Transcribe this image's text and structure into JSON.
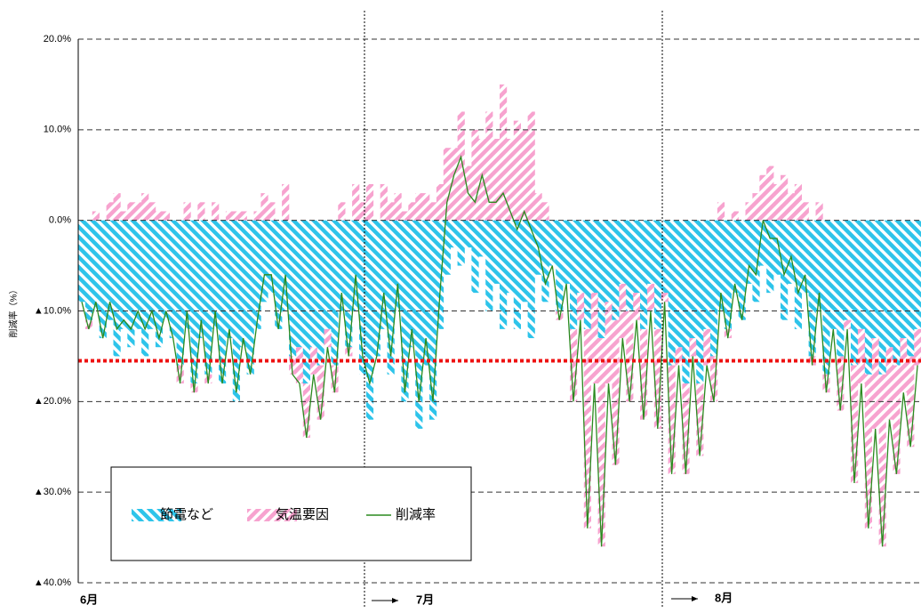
{
  "chart_data": {
    "type": "hatched-bar-line",
    "y_axis_label": "削減率（%）",
    "months": [
      "6月",
      "7月",
      "8月"
    ],
    "ylim": [
      -40,
      20
    ],
    "yticks": [
      {
        "value": -40,
        "label": "▲40.0%"
      },
      {
        "value": -30,
        "label": "▲30.0%"
      },
      {
        "value": -20,
        "label": "▲20.0%"
      },
      {
        "value": -10,
        "label": "▲10.0%"
      },
      {
        "value": 0,
        "label": "0.0%"
      },
      {
        "value": 10,
        "label": "10.0%"
      },
      {
        "value": 20,
        "label": "20.0%"
      }
    ],
    "grid": true,
    "reference_line": {
      "value": -15.5,
      "color": "#ee1111"
    },
    "categories": [
      null,
      null,
      null,
      null,
      null,
      null,
      null,
      null,
      null,
      null,
      null,
      null,
      null,
      null,
      null,
      null,
      null,
      null,
      null,
      null,
      null,
      null,
      null,
      null,
      null,
      null,
      null,
      null,
      null,
      null,
      null,
      null,
      null,
      null,
      null,
      null,
      null,
      null,
      null,
      null,
      null,
      null,
      null,
      null,
      null,
      null,
      null,
      null,
      null,
      null,
      null,
      null,
      null,
      null,
      null,
      null,
      null,
      null,
      null,
      null,
      null,
      null,
      null,
      null,
      null,
      null,
      null,
      null,
      null,
      null,
      null,
      null,
      null,
      null,
      null,
      null,
      null,
      null,
      null,
      null,
      null,
      null,
      null,
      null,
      null,
      null,
      null,
      null,
      null,
      null,
      null,
      null,
      null,
      null,
      null,
      null,
      null,
      null,
      null,
      null,
      null,
      null,
      null,
      null,
      null,
      null,
      null,
      null,
      null,
      null,
      null,
      null,
      null,
      null,
      null,
      null,
      null,
      null,
      null,
      null
    ],
    "series": [
      {
        "name": "節電など",
        "color": "#2ec4ea",
        "values": [
          -9,
          -11,
          -10,
          -13,
          -11,
          -15,
          -12,
          -14,
          -12,
          -15,
          -12,
          -14,
          -11,
          -13,
          -16,
          -12,
          -18,
          -13,
          -17,
          -12,
          -18,
          -13,
          -20,
          -14,
          -17,
          -12,
          -9,
          -8,
          -12,
          -10,
          -15,
          -14,
          -18,
          -14,
          -16,
          -12,
          -16,
          -10,
          -14,
          -10,
          -17,
          -22,
          -15,
          -12,
          -17,
          -10,
          -20,
          -14,
          -23,
          -16,
          -22,
          -12,
          -6,
          -3,
          -5,
          -3,
          -8,
          -4,
          -10,
          -7,
          -12,
          -8,
          -12,
          -9,
          -13,
          -6,
          -9,
          -5,
          -10,
          -7,
          -12,
          -8,
          -12,
          -8,
          -13,
          -9,
          -11,
          -7,
          -10,
          -8,
          -12,
          -7,
          -12,
          -8,
          -16,
          -14,
          -18,
          -13,
          -18,
          -12,
          -15,
          -10,
          -12,
          -8,
          -11,
          -7,
          -9,
          -5,
          -8,
          -6,
          -11,
          -7,
          -12,
          -8,
          -15,
          -10,
          -17,
          -12,
          -15,
          -11,
          -16,
          -12,
          -17,
          -13,
          -17,
          -14,
          -16,
          -13,
          -15,
          -12
        ]
      },
      {
        "name": "気温要因",
        "color": "#f7a3cf",
        "values": [
          0,
          -1,
          1,
          0,
          2,
          3,
          1,
          2,
          2,
          3,
          2,
          1,
          1,
          0,
          -2,
          2,
          -1,
          2,
          -1,
          2,
          0,
          1,
          1,
          1,
          0,
          1,
          3,
          2,
          0,
          4,
          -2,
          -4,
          -6,
          -3,
          -6,
          -2,
          -3,
          2,
          -1,
          4,
          2,
          4,
          0,
          4,
          2,
          3,
          1,
          2,
          3,
          3,
          2,
          4,
          8,
          8,
          12,
          6,
          10,
          9,
          12,
          9,
          15,
          9,
          11,
          10,
          12,
          3,
          2,
          0,
          -1,
          0,
          -8,
          -3,
          -22,
          -10,
          -23,
          -9,
          -16,
          -6,
          -10,
          -3,
          -10,
          -3,
          -11,
          -1,
          -12,
          -2,
          -10,
          -2,
          -8,
          -4,
          -5,
          2,
          -1,
          1,
          0,
          2,
          3,
          5,
          6,
          4,
          5,
          3,
          4,
          2,
          -1,
          2,
          -2,
          0,
          -6,
          -1,
          -13,
          -6,
          -17,
          -10,
          -19,
          -8,
          -12,
          -6,
          -10,
          -4
        ]
      },
      {
        "name": "削減率",
        "color": "#2a8a1e",
        "values": [
          -9,
          -12,
          -9,
          -13,
          -9,
          -12,
          -11,
          -12,
          -10,
          -12,
          -10,
          -13,
          -10,
          -13,
          -18,
          -10,
          -19,
          -11,
          -18,
          -10,
          -18,
          -12,
          -19,
          -13,
          -17,
          -11,
          -6,
          -6,
          -12,
          -6,
          -17,
          -18,
          -24,
          -17,
          -22,
          -14,
          -19,
          -8,
          -15,
          -6,
          -15,
          -18,
          -15,
          -8,
          -15,
          -7,
          -19,
          -12,
          -20,
          -13,
          -20,
          -8,
          2,
          5,
          7,
          3,
          2,
          5,
          2,
          2,
          3,
          1,
          -1,
          1,
          -1,
          -3,
          -7,
          -5,
          -11,
          -7,
          -20,
          -11,
          -34,
          -18,
          -36,
          -18,
          -27,
          -13,
          -20,
          -11,
          -22,
          -10,
          -23,
          -9,
          -28,
          -16,
          -28,
          -15,
          -26,
          -16,
          -20,
          -8,
          -13,
          -7,
          -11,
          -5,
          -6,
          0,
          -2,
          -2,
          -6,
          -4,
          -8,
          -6,
          -16,
          -8,
          -19,
          -12,
          -21,
          -12,
          -29,
          -18,
          -34,
          -23,
          -36,
          -22,
          -28,
          -19,
          -25,
          -16
        ]
      }
    ]
  }
}
